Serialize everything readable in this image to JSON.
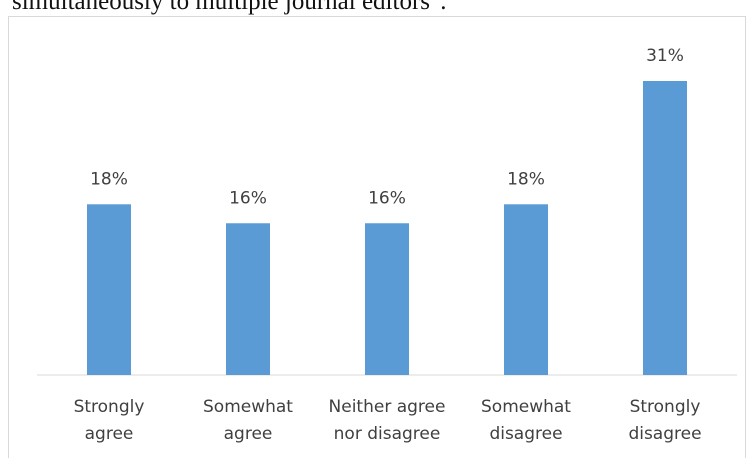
{
  "caption_fragment": "simultaneously to multiple journal editors\".",
  "colors": {
    "bar": "#5b9bd5",
    "axis": "#d9d9d9",
    "text": "#404040"
  },
  "chart_data": {
    "type": "bar",
    "categories": [
      [
        "Strongly",
        "agree"
      ],
      [
        "Somewhat",
        "agree"
      ],
      [
        "Neither agree",
        "nor disagree"
      ],
      [
        "Somewhat",
        "disagree"
      ],
      [
        "Strongly",
        "disagree"
      ]
    ],
    "values": [
      18,
      16,
      16,
      18,
      31
    ],
    "value_labels": [
      "18%",
      "16%",
      "16%",
      "18%",
      "31%"
    ],
    "unit": "%",
    "title": "",
    "xlabel": "",
    "ylabel": "",
    "ylim": [
      0,
      31
    ],
    "grid": false,
    "legend": "none"
  }
}
